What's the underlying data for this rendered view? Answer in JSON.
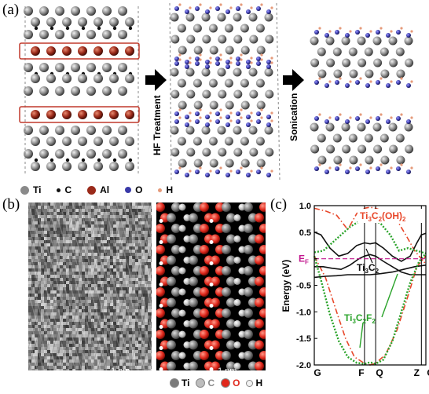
{
  "panels": {
    "a": {
      "label": "(a)",
      "arrow1_label": "HF Treatment",
      "arrow2_label": "Sonication",
      "legend": [
        {
          "symbol": "Ti",
          "color": "#8a8a8a"
        },
        {
          "symbol": "C",
          "color": "#111111"
        },
        {
          "symbol": "Al",
          "color": "#9a2a1a"
        },
        {
          "symbol": "O",
          "color": "#3a3aa8"
        },
        {
          "symbol": "H",
          "color": "#e59a7a"
        }
      ]
    },
    "b": {
      "label": "(b)",
      "scale_left": "1 nm",
      "scale_right": "1 nm",
      "legend": [
        {
          "symbol": "Ti",
          "color": "#7a7a7a"
        },
        {
          "symbol": "C",
          "color": "#bdbdbd"
        },
        {
          "symbol": "O",
          "color": "#e0281c"
        },
        {
          "symbol": "H",
          "color": "#f2f2f2"
        }
      ]
    },
    "c": {
      "label": "(c)"
    }
  },
  "chart_data": {
    "type": "line",
    "ylabel": "Energy (eV)",
    "xlabel": "",
    "ylim": [
      -2.0,
      1.0
    ],
    "yticks": [
      -2.0,
      -1.5,
      -1.0,
      -0.5,
      0.0,
      0.5,
      1.0
    ],
    "ytick_labels": [
      "-2.0",
      "-1.5",
      "-1.0",
      "-0.5",
      "",
      "0.5",
      "1.0"
    ],
    "kpoints": [
      "G",
      "F",
      "Q",
      "Z",
      "G"
    ],
    "kpoint_positions": [
      0,
      0.45,
      0.55,
      0.96,
      1.0
    ],
    "fermi_label": "E",
    "fermi_sub": "F",
    "fermi_level": 0.0,
    "series": [
      {
        "name": "Ti3C2(OH)2",
        "name_parts": [
          "Ti",
          "3",
          "C",
          "2",
          "(OH)",
          "2",
          ""
        ],
        "color": "#e8472a",
        "style": "dash-dot",
        "bands": [
          {
            "x": [
              0,
              0.1,
              0.2,
              0.3,
              0.38,
              0.45,
              0.5,
              0.55,
              0.62,
              0.72,
              0.82,
              0.9,
              0.96,
              1.0
            ],
            "y": [
              0.95,
              0.9,
              0.82,
              0.55,
              0.85,
              0.95,
              0.97,
              0.95,
              0.9,
              0.8,
              0.45,
              0.15,
              0.0,
              -0.1
            ]
          },
          {
            "x": [
              0,
              0.1,
              0.2,
              0.28,
              0.36,
              0.45,
              0.5,
              0.55,
              0.64,
              0.74,
              0.84,
              0.92,
              1.0
            ],
            "y": [
              0.05,
              -0.35,
              -1.0,
              -1.5,
              -1.85,
              -1.97,
              -2.0,
              -1.97,
              -1.8,
              -1.35,
              -0.7,
              -0.15,
              0.05
            ]
          }
        ]
      },
      {
        "name": "Ti3C2",
        "name_parts": [
          "Ti",
          "3",
          "C",
          "2",
          "",
          "",
          ""
        ],
        "color": "#111111",
        "style": "solid",
        "bands": [
          {
            "x": [
              0,
              0.06,
              0.14,
              0.22,
              0.3,
              0.38,
              0.45,
              0.5,
              0.55,
              0.62,
              0.7,
              0.78,
              0.86,
              0.92,
              0.96,
              1.0
            ],
            "y": [
              0.5,
              0.45,
              0.2,
              0.05,
              0.1,
              0.25,
              0.3,
              0.28,
              0.3,
              0.2,
              0.05,
              -0.05,
              0.05,
              0.3,
              0.45,
              0.48
            ]
          },
          {
            "x": [
              0,
              0.08,
              0.16,
              0.24,
              0.32,
              0.4,
              0.45,
              0.5,
              0.55,
              0.62,
              0.7,
              0.78,
              0.86,
              0.94,
              1.0
            ],
            "y": [
              -0.15,
              -0.15,
              -0.18,
              -0.2,
              -0.12,
              0.0,
              0.05,
              0.08,
              0.05,
              -0.05,
              -0.15,
              -0.25,
              -0.3,
              -0.3,
              -0.3
            ]
          },
          {
            "x": [
              0,
              0.1,
              0.2,
              0.3,
              0.4,
              0.5,
              0.6,
              0.7,
              0.8,
              0.9,
              1.0
            ],
            "y": [
              -0.35,
              -0.33,
              -0.32,
              -0.3,
              -0.3,
              -0.3,
              -0.28,
              -0.25,
              -0.2,
              -0.15,
              -0.12
            ]
          }
        ]
      },
      {
        "name": "Ti3C2F2",
        "name_parts": [
          "Ti",
          "3",
          "C",
          "2",
          "F",
          "2",
          ""
        ],
        "color": "#2aa32a",
        "style": "dotted",
        "bands": [
          {
            "x": [
              0,
              0.08,
              0.16,
              0.24,
              0.32,
              0.4,
              0.45,
              0.5,
              0.55,
              0.6,
              0.68,
              0.76,
              0.84,
              0.92,
              1.0
            ],
            "y": [
              0.12,
              0.15,
              0.3,
              0.45,
              0.6,
              0.7,
              0.72,
              0.7,
              0.72,
              0.65,
              0.45,
              0.15,
              0.2,
              0.15,
              0.1
            ]
          },
          {
            "x": [
              0,
              0.06,
              0.14,
              0.22,
              0.3,
              0.38,
              0.45,
              0.5,
              0.55,
              0.62,
              0.7,
              0.78,
              0.86,
              0.94,
              1.0
            ],
            "y": [
              0.05,
              -0.4,
              -1.05,
              -1.55,
              -1.85,
              -1.96,
              -1.98,
              -1.95,
              -1.98,
              -1.9,
              -1.55,
              -1.0,
              -0.45,
              -0.05,
              0.1
            ]
          }
        ]
      }
    ],
    "annotations": [
      {
        "text_parts": [
          "Ti",
          "3",
          "C",
          "2",
          "(OH)",
          "2",
          ""
        ],
        "color": "#e8472a"
      },
      {
        "text_parts": [
          "Ti",
          "3",
          "C",
          "2",
          "",
          "",
          ""
        ],
        "color": "#111111"
      },
      {
        "text_parts": [
          "Ti",
          "3",
          "C",
          "2",
          "F",
          "2",
          ""
        ],
        "color": "#2aa32a"
      }
    ]
  }
}
